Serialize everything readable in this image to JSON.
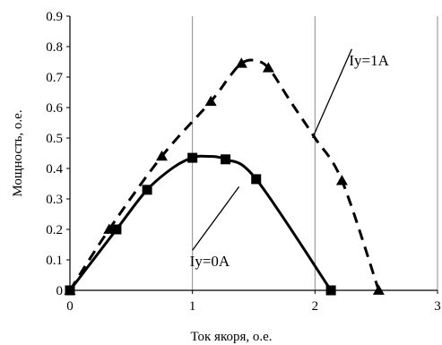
{
  "chart_data": {
    "type": "line",
    "xlabel": "Ток якоря, о.е.",
    "ylabel": "Мощность, о.е.",
    "xlim": [
      0,
      3
    ],
    "ylim": [
      0,
      0.9
    ],
    "xticks": [
      "0",
      "1",
      "2",
      "3"
    ],
    "yticks": [
      "0",
      "0.1",
      "0.2",
      "0.3",
      "0.4",
      "0.5",
      "0.6",
      "0.7",
      "0.8",
      "0.9"
    ],
    "grid": "vertical",
    "series": [
      {
        "name": "Iy=1A",
        "style": "dashed",
        "marker": "triangle",
        "color": "#000000",
        "points": [
          [
            0,
            0
          ],
          [
            0.32,
            0.2
          ],
          [
            0.75,
            0.44
          ],
          [
            1.15,
            0.62
          ],
          [
            1.4,
            0.745
          ],
          [
            1.62,
            0.73
          ],
          [
            2.22,
            0.36
          ],
          [
            2.52,
            0
          ]
        ],
        "curve": [
          [
            0,
            0
          ],
          [
            0.32,
            0.2
          ],
          [
            0.75,
            0.44
          ],
          [
            1.15,
            0.62
          ],
          [
            1.3,
            0.7
          ],
          [
            1.4,
            0.745
          ],
          [
            1.5,
            0.755
          ],
          [
            1.62,
            0.73
          ],
          [
            1.8,
            0.62
          ],
          [
            2.0,
            0.5
          ],
          [
            2.22,
            0.36
          ],
          [
            2.52,
            0
          ]
        ]
      },
      {
        "name": "Iy=0A",
        "style": "solid",
        "marker": "square",
        "color": "#000000",
        "points": [
          [
            0,
            0
          ],
          [
            0.38,
            0.2
          ],
          [
            0.63,
            0.33
          ],
          [
            1.0,
            0.435
          ],
          [
            1.27,
            0.43
          ],
          [
            1.52,
            0.365
          ],
          [
            2.13,
            0
          ]
        ],
        "curve": [
          [
            0,
            0
          ],
          [
            0.38,
            0.2
          ],
          [
            0.63,
            0.33
          ],
          [
            0.85,
            0.405
          ],
          [
            1.0,
            0.435
          ],
          [
            1.1,
            0.44
          ],
          [
            1.27,
            0.43
          ],
          [
            1.52,
            0.365
          ],
          [
            2.13,
            0
          ]
        ]
      }
    ],
    "annotations": [
      {
        "text": "Iy=1A",
        "target": [
          1.98,
          0.5
        ],
        "label_at": [
          2.3,
          0.78
        ]
      },
      {
        "text": "Iy=0A",
        "target": [
          1.38,
          0.34
        ],
        "label_at": [
          1.0,
          0.12
        ]
      }
    ]
  }
}
